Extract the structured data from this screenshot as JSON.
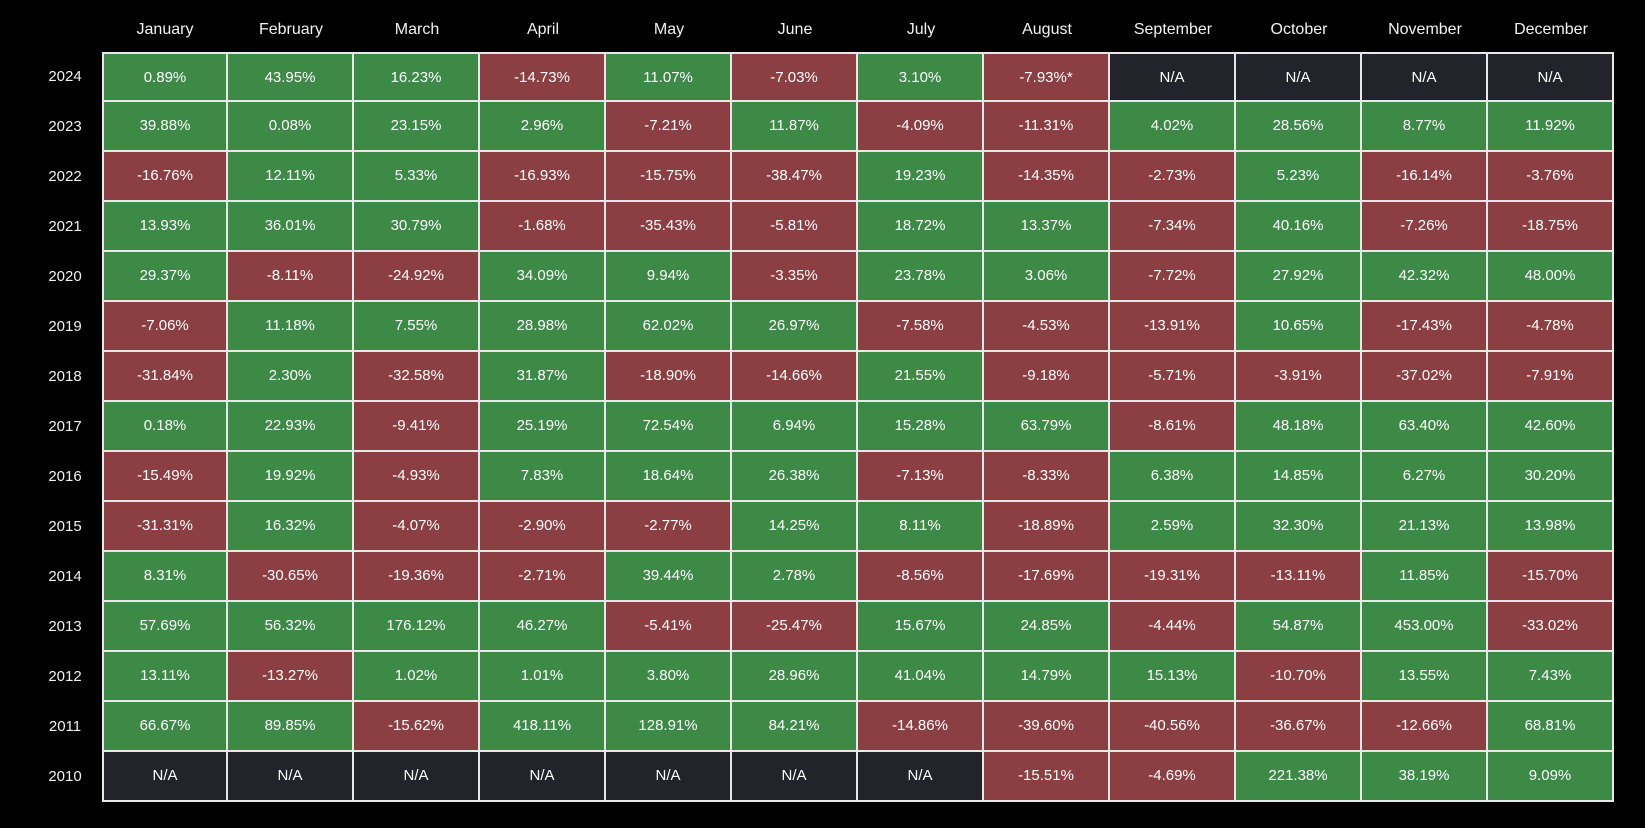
{
  "colors": {
    "positive": "#3c8a46",
    "negative": "#8c3f42",
    "na": "#23232b",
    "background": "#000000",
    "grid": "#e8e8e8"
  },
  "chart_data": {
    "type": "heatmap",
    "columns": [
      "January",
      "February",
      "March",
      "April",
      "May",
      "June",
      "July",
      "August",
      "September",
      "October",
      "November",
      "December"
    ],
    "rows": [
      "2024",
      "2023",
      "2022",
      "2021",
      "2020",
      "2019",
      "2018",
      "2017",
      "2016",
      "2015",
      "2014",
      "2013",
      "2012",
      "2011",
      "2010"
    ],
    "cells": [
      [
        "0.89%",
        "43.95%",
        "16.23%",
        "-14.73%",
        "11.07%",
        "-7.03%",
        "3.10%",
        "-7.93%*",
        "N/A",
        "N/A",
        "N/A",
        "N/A"
      ],
      [
        "39.88%",
        "0.08%",
        "23.15%",
        "2.96%",
        "-7.21%",
        "11.87%",
        "-4.09%",
        "-11.31%",
        "4.02%",
        "28.56%",
        "8.77%",
        "11.92%"
      ],
      [
        "-16.76%",
        "12.11%",
        "5.33%",
        "-16.93%",
        "-15.75%",
        "-38.47%",
        "19.23%",
        "-14.35%",
        "-2.73%",
        "5.23%",
        "-16.14%",
        "-3.76%"
      ],
      [
        "13.93%",
        "36.01%",
        "30.79%",
        "-1.68%",
        "-35.43%",
        "-5.81%",
        "18.72%",
        "13.37%",
        "-7.34%",
        "40.16%",
        "-7.26%",
        "-18.75%"
      ],
      [
        "29.37%",
        "-8.11%",
        "-24.92%",
        "34.09%",
        "9.94%",
        "-3.35%",
        "23.78%",
        "3.06%",
        "-7.72%",
        "27.92%",
        "42.32%",
        "48.00%"
      ],
      [
        "-7.06%",
        "11.18%",
        "7.55%",
        "28.98%",
        "62.02%",
        "26.97%",
        "-7.58%",
        "-4.53%",
        "-13.91%",
        "10.65%",
        "-17.43%",
        "-4.78%"
      ],
      [
        "-31.84%",
        "2.30%",
        "-32.58%",
        "31.87%",
        "-18.90%",
        "-14.66%",
        "21.55%",
        "-9.18%",
        "-5.71%",
        "-3.91%",
        "-37.02%",
        "-7.91%"
      ],
      [
        "0.18%",
        "22.93%",
        "-9.41%",
        "25.19%",
        "72.54%",
        "6.94%",
        "15.28%",
        "63.79%",
        "-8.61%",
        "48.18%",
        "63.40%",
        "42.60%"
      ],
      [
        "-15.49%",
        "19.92%",
        "-4.93%",
        "7.83%",
        "18.64%",
        "26.38%",
        "-7.13%",
        "-8.33%",
        "6.38%",
        "14.85%",
        "6.27%",
        "30.20%"
      ],
      [
        "-31.31%",
        "16.32%",
        "-4.07%",
        "-2.90%",
        "-2.77%",
        "14.25%",
        "8.11%",
        "-18.89%",
        "2.59%",
        "32.30%",
        "21.13%",
        "13.98%"
      ],
      [
        "8.31%",
        "-30.65%",
        "-19.36%",
        "-2.71%",
        "39.44%",
        "2.78%",
        "-8.56%",
        "-17.69%",
        "-19.31%",
        "-13.11%",
        "11.85%",
        "-15.70%"
      ],
      [
        "57.69%",
        "56.32%",
        "176.12%",
        "46.27%",
        "-5.41%",
        "-25.47%",
        "15.67%",
        "24.85%",
        "-4.44%",
        "54.87%",
        "453.00%",
        "-33.02%"
      ],
      [
        "13.11%",
        "-13.27%",
        "1.02%",
        "1.01%",
        "3.80%",
        "28.96%",
        "41.04%",
        "14.79%",
        "15.13%",
        "-10.70%",
        "13.55%",
        "7.43%"
      ],
      [
        "66.67%",
        "89.85%",
        "-15.62%",
        "418.11%",
        "128.91%",
        "84.21%",
        "-14.86%",
        "-39.60%",
        "-40.56%",
        "-36.67%",
        "-12.66%",
        "68.81%"
      ],
      [
        "N/A",
        "N/A",
        "N/A",
        "N/A",
        "N/A",
        "N/A",
        "N/A",
        "-15.51%",
        "-4.69%",
        "221.38%",
        "38.19%",
        "9.09%"
      ]
    ]
  }
}
